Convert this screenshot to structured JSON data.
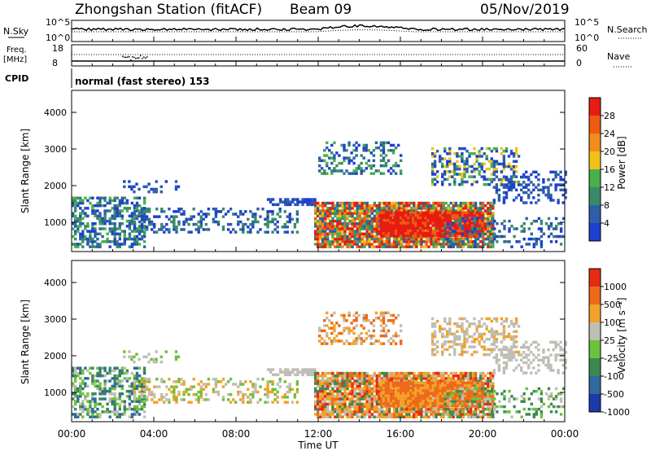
{
  "header": {
    "station": "Zhongshan Station (fitACF)",
    "beam": "Beam 09",
    "date": "05/Nov/2019"
  },
  "status_panels": {
    "nsky_label": "N.Sky",
    "nsearch_label": "N.Search",
    "freq_label_1": "Freq.",
    "freq_label_2": "[MHz]",
    "nave_label": "Nave",
    "cpid_label": "CPID",
    "cpid_value": "normal (fast stereo) 153",
    "nsky_ticks": [
      "10^5",
      "10^0"
    ],
    "nsearch_ticks": [
      "10^5",
      "10^0"
    ],
    "freq_ticks": [
      "18",
      "8"
    ],
    "nave_ticks": [
      "60",
      "0"
    ]
  },
  "chart_data": [
    {
      "type": "heatmap",
      "title": "",
      "xlabel": "",
      "ylabel": "Slant Range [km]",
      "ylim": [
        200,
        4600
      ],
      "xlim": [
        0,
        24
      ],
      "yticks": [
        "1000",
        "2000",
        "3000",
        "4000"
      ],
      "colorbar_label": "Power [dB]",
      "colorbar_ticks": [
        "4",
        "8",
        "12",
        "16",
        "20",
        "24",
        "28"
      ],
      "colors": [
        "#1f3fd0",
        "#2e5fa8",
        "#3a8a6a",
        "#49b04e",
        "#f2c21a",
        "#f28c1c",
        "#ee5a14",
        "#e61c12"
      ]
    },
    {
      "type": "heatmap",
      "title": "",
      "xlabel": "Time UT",
      "ylabel": "Slant Range [km]",
      "ylim": [
        200,
        4600
      ],
      "xlim": [
        0,
        24
      ],
      "yticks": [
        "1000",
        "2000",
        "3000",
        "4000"
      ],
      "xticks": [
        "00:00",
        "04:00",
        "08:00",
        "12:00",
        "16:00",
        "20:00",
        "00:00"
      ],
      "colorbar_label": "Velocity [m s⁻¹]",
      "colorbar_ticks": [
        "1000",
        "500",
        "100",
        "25",
        "-25",
        "-100",
        "-500",
        "-1000"
      ],
      "colors": [
        "#1e3aa8",
        "#2f6aa0",
        "#3b8a52",
        "#6cc23a",
        "#bfbfb5",
        "#f2a22a",
        "#ee6a1a",
        "#e62a14"
      ]
    }
  ]
}
